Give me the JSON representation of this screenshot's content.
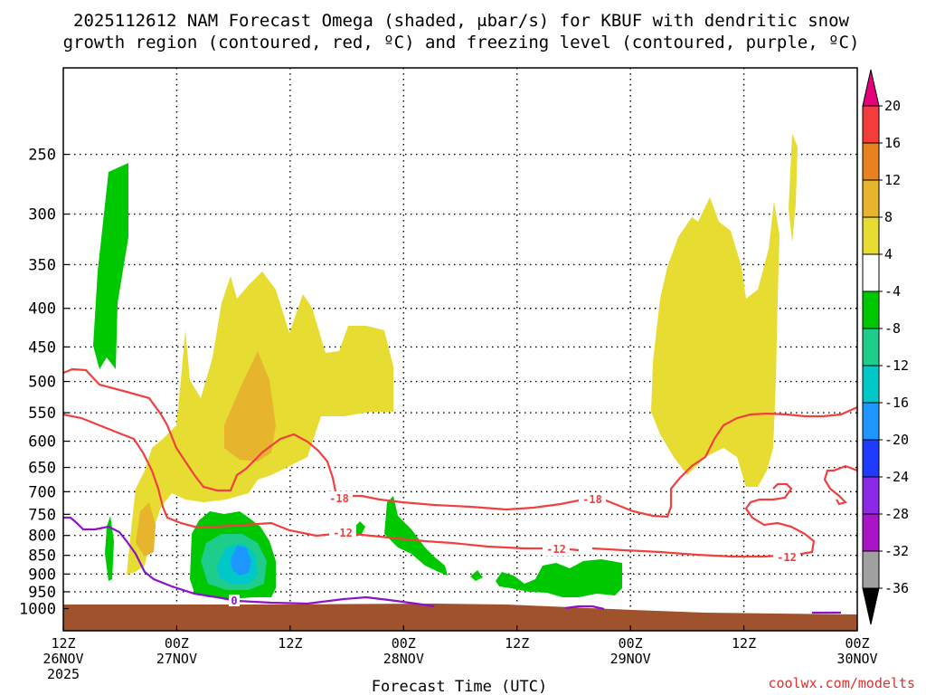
{
  "chart_data": {
    "type": "time-height cross section",
    "title_line1": "2025112612 NAM Forecast Omega (shaded, μbar/s) for KBUF with dendritic snow",
    "title_line2": "growth region (contoured, red, ºC) and freezing level (contoured, purple, ºC)",
    "xlabel": "Forecast Time (UTC)",
    "ylabel": "",
    "x_hours_range": [
      0,
      84
    ],
    "y_pressure_range": [
      1000,
      200
    ],
    "y_ticks": [
      250,
      300,
      350,
      400,
      450,
      500,
      550,
      600,
      650,
      700,
      750,
      800,
      850,
      900,
      950,
      1000
    ],
    "x_ticks": [
      {
        "hour": 0,
        "line1": "12Z",
        "line2": "26NOV",
        "line3": "2025"
      },
      {
        "hour": 12,
        "line1": "00Z",
        "line2": "27NOV",
        "line3": ""
      },
      {
        "hour": 24,
        "line1": "12Z",
        "line2": "",
        "line3": ""
      },
      {
        "hour": 36,
        "line1": "00Z",
        "line2": "28NOV",
        "line3": ""
      },
      {
        "hour": 48,
        "line1": "12Z",
        "line2": "",
        "line3": ""
      },
      {
        "hour": 60,
        "line1": "00Z",
        "line2": "29NOV",
        "line3": ""
      },
      {
        "hour": 72,
        "line1": "12Z",
        "line2": "",
        "line3": ""
      },
      {
        "hour": 84,
        "line1": "00Z",
        "line2": "30NOV",
        "line3": ""
      }
    ],
    "colorbar": {
      "labels": [
        "20",
        "16",
        "12",
        "8",
        "4",
        "-4",
        "-8",
        "-12",
        "-16",
        "-20",
        "-24",
        "-28",
        "-32",
        "-36"
      ],
      "colors": [
        "#e6007a",
        "#f53c3c",
        "#e8821e",
        "#e6b42d",
        "#e6dc32",
        "#ffffff",
        "#00c800",
        "#1ecc8c",
        "#00c8c8",
        "#1e96ff",
        "#1e3cff",
        "#8c28e6",
        "#aa14c8",
        "#a0a0a0",
        "#000000"
      ]
    },
    "contours": [
      {
        "label": "-18",
        "color": "#f04040"
      },
      {
        "label": "-18",
        "color": "#f04040"
      },
      {
        "label": "-12",
        "color": "#f04040"
      },
      {
        "label": "-12",
        "color": "#f04040"
      },
      {
        "label": "-12",
        "color": "#f04040"
      },
      {
        "label": "0",
        "color": "#8c14c8"
      }
    ]
  },
  "credit": "coolwx.com/modelts"
}
